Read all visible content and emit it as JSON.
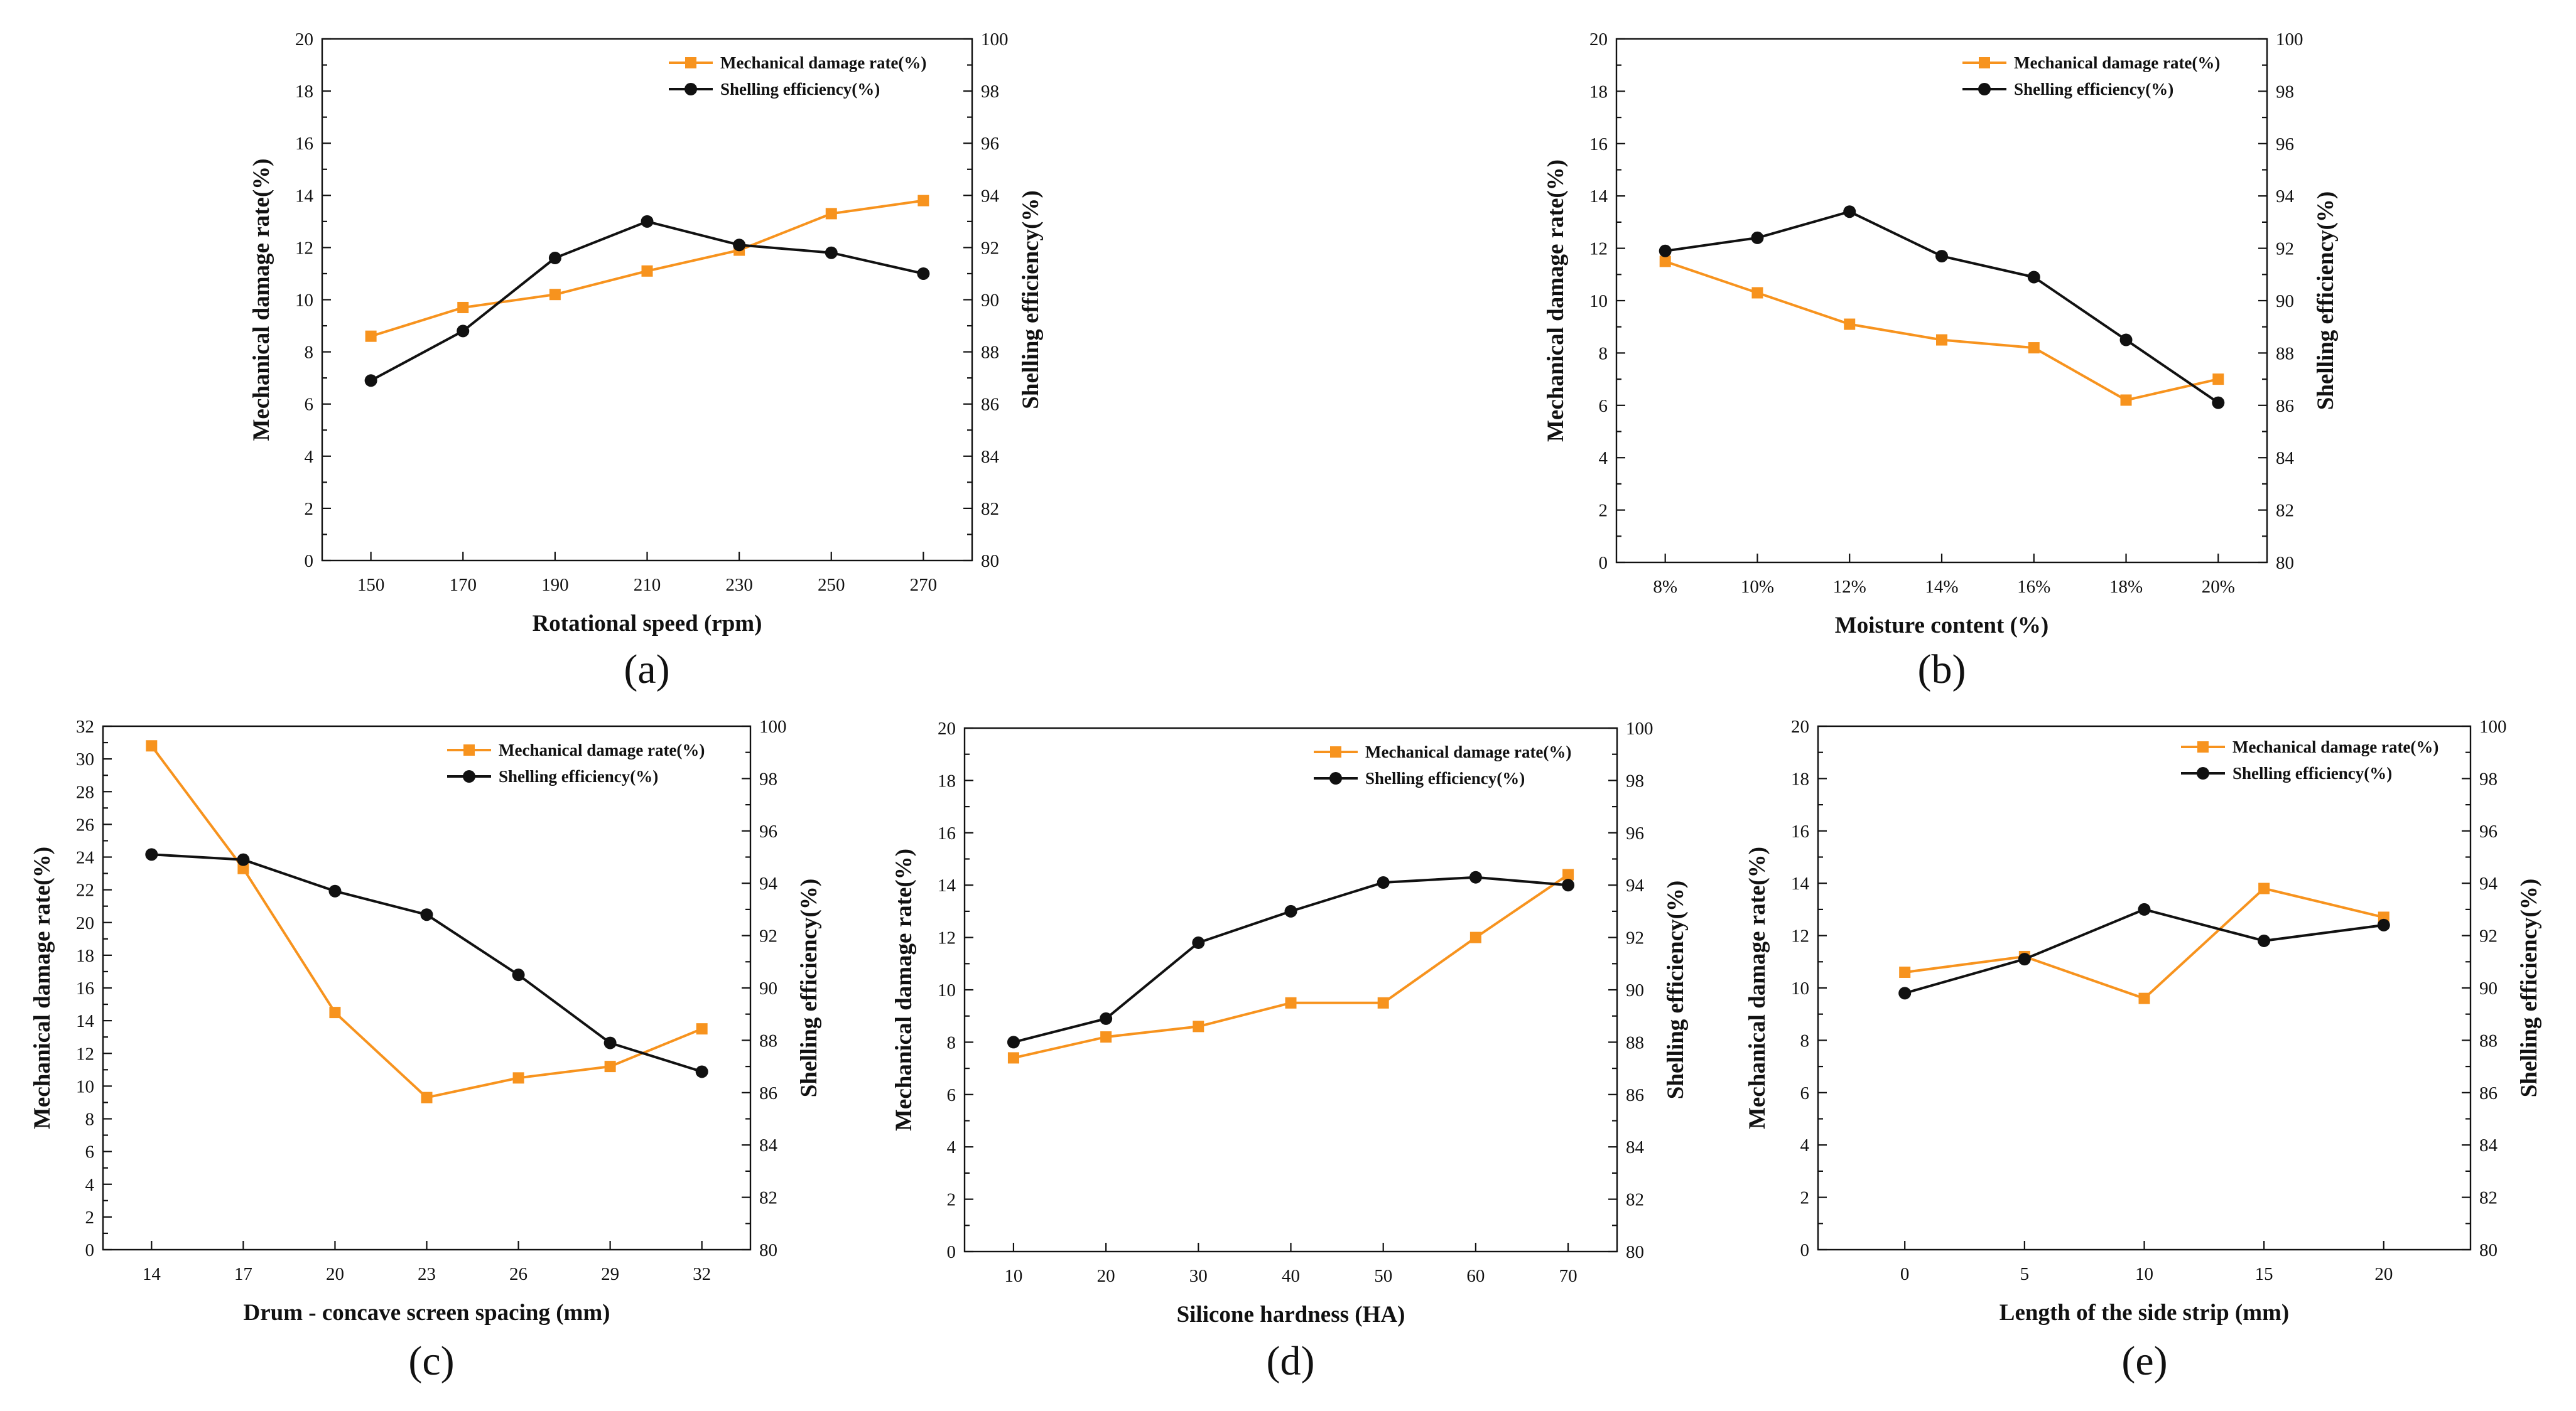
{
  "figure": {
    "colors": {
      "damage": "#f7931e",
      "efficiency": "#111111"
    },
    "legend": {
      "damage": "Mechanical damage rate(%)",
      "efficiency": "Shelling efficiency(%)"
    }
  },
  "chart_data": [
    {
      "type": "line",
      "panel": "(a)",
      "xlabel": "Rotational speed (rpm)",
      "ylabel_left": "Mechanical damage rate(%)",
      "ylabel_right": "Shelling efficiency(%)",
      "categories": [
        "150",
        "170",
        "190",
        "210",
        "230",
        "250",
        "270"
      ],
      "ylim_left": [
        0,
        20
      ],
      "yticks_left": [
        0,
        2,
        4,
        6,
        8,
        10,
        12,
        14,
        16,
        18,
        20
      ],
      "ylim_right": [
        80,
        100
      ],
      "yticks_right": [
        80,
        82,
        84,
        86,
        88,
        90,
        92,
        94,
        96,
        98,
        100
      ],
      "legend_position": "top-right",
      "series": [
        {
          "name": "Mechanical damage rate(%)",
          "axis": "left",
          "marker": "square",
          "values": [
            8.6,
            9.7,
            10.2,
            11.1,
            11.9,
            13.3,
            13.8
          ]
        },
        {
          "name": "Shelling efficiency(%)",
          "axis": "right",
          "marker": "circle",
          "values": [
            86.9,
            88.8,
            91.6,
            93.0,
            92.1,
            91.8,
            91.0
          ]
        }
      ]
    },
    {
      "type": "line",
      "panel": "(b)",
      "xlabel": "Moisture content (%)",
      "ylabel_left": "Mechanical damage rate(%)",
      "ylabel_right": "Shelling efficiency(%)",
      "categories": [
        "8%",
        "10%",
        "12%",
        "14%",
        "16%",
        "18%",
        "20%"
      ],
      "ylim_left": [
        0,
        20
      ],
      "yticks_left": [
        0,
        2,
        4,
        6,
        8,
        10,
        12,
        14,
        16,
        18,
        20
      ],
      "ylim_right": [
        80,
        100
      ],
      "yticks_right": [
        80,
        82,
        84,
        86,
        88,
        90,
        92,
        94,
        96,
        98,
        100
      ],
      "legend_position": "top-right",
      "series": [
        {
          "name": "Mechanical damage rate(%)",
          "axis": "left",
          "marker": "square",
          "values": [
            11.5,
            10.3,
            9.1,
            8.5,
            8.2,
            6.2,
            7.0
          ]
        },
        {
          "name": "Shelling efficiency(%)",
          "axis": "right",
          "marker": "circle",
          "values": [
            91.9,
            92.4,
            93.4,
            91.7,
            90.9,
            88.5,
            86.1
          ]
        }
      ]
    },
    {
      "type": "line",
      "panel": "(c)",
      "xlabel": "Drum - concave screen spacing (mm)",
      "ylabel_left": "Mechanical damage rate(%)",
      "ylabel_right": "Shelling efficiency(%)",
      "categories": [
        "14",
        "17",
        "20",
        "23",
        "26",
        "29",
        "32"
      ],
      "ylim_left": [
        0,
        32
      ],
      "yticks_left": [
        0,
        2,
        4,
        6,
        8,
        10,
        12,
        14,
        16,
        18,
        20,
        22,
        24,
        26,
        28,
        30,
        32
      ],
      "ylim_right": [
        80,
        100
      ],
      "yticks_right": [
        80,
        82,
        84,
        86,
        88,
        90,
        92,
        94,
        96,
        98,
        100
      ],
      "legend_position": "top-right",
      "series": [
        {
          "name": "Mechanical damage rate(%)",
          "axis": "left",
          "marker": "square",
          "values": [
            30.8,
            23.3,
            14.5,
            9.3,
            10.5,
            11.2,
            13.5
          ]
        },
        {
          "name": "Shelling efficiency(%)",
          "axis": "right",
          "marker": "circle",
          "values": [
            95.1,
            94.9,
            93.7,
            92.8,
            90.5,
            87.9,
            86.8
          ]
        }
      ]
    },
    {
      "type": "line",
      "panel": "(d)",
      "xlabel": "Silicone hardness (HA)",
      "ylabel_left": "Mechanical damage rate(%)",
      "ylabel_right": "Shelling efficiency(%)",
      "categories": [
        "10",
        "20",
        "30",
        "40",
        "50",
        "60",
        "70"
      ],
      "ylim_left": [
        0,
        20
      ],
      "yticks_left": [
        0,
        2,
        4,
        6,
        8,
        10,
        12,
        14,
        16,
        18,
        20
      ],
      "ylim_right": [
        80,
        100
      ],
      "yticks_right": [
        80,
        82,
        84,
        86,
        88,
        90,
        92,
        94,
        96,
        98,
        100
      ],
      "legend_position": "top-right",
      "series": [
        {
          "name": "Mechanical damage rate(%)",
          "axis": "left",
          "marker": "square",
          "values": [
            7.4,
            8.2,
            8.6,
            9.5,
            9.5,
            12.0,
            14.4
          ]
        },
        {
          "name": "Shelling efficiency(%)",
          "axis": "right",
          "marker": "circle",
          "values": [
            88.0,
            88.9,
            91.8,
            93.0,
            94.1,
            94.3,
            94.0
          ]
        }
      ]
    },
    {
      "type": "line",
      "panel": "(e)",
      "xlabel": "Length of the side strip (mm)",
      "ylabel_left": "Mechanical damage rate(%)",
      "ylabel_right": "Shelling efficiency(%)",
      "categories": [
        "0",
        "5",
        "10",
        "15",
        "20"
      ],
      "ylim_left": [
        0,
        20
      ],
      "yticks_left": [
        0,
        2,
        4,
        6,
        8,
        10,
        12,
        14,
        16,
        18,
        20
      ],
      "ylim_right": [
        80,
        100
      ],
      "yticks_right": [
        80,
        82,
        84,
        86,
        88,
        90,
        92,
        94,
        96,
        98,
        100
      ],
      "legend_position": "top-right",
      "series": [
        {
          "name": "Mechanical damage rate(%)",
          "axis": "left",
          "marker": "square",
          "values": [
            10.6,
            11.2,
            9.6,
            13.8,
            12.7
          ]
        },
        {
          "name": "Shelling efficiency(%)",
          "axis": "right",
          "marker": "circle",
          "values": [
            89.8,
            91.1,
            93.0,
            91.8,
            92.4
          ]
        }
      ]
    }
  ]
}
